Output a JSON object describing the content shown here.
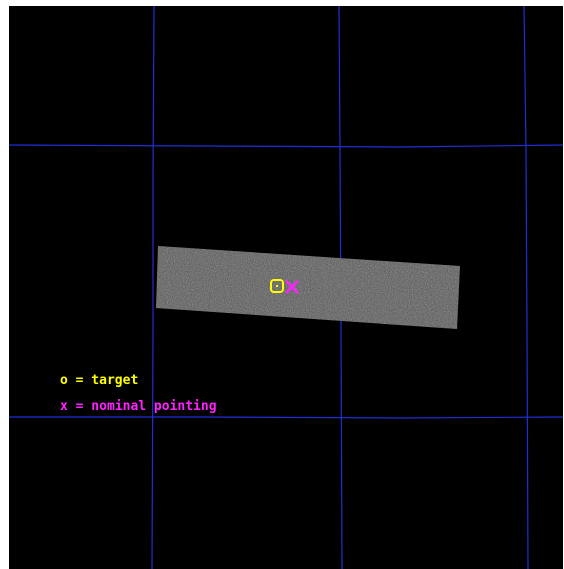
{
  "colors": {
    "background": "#000000",
    "grid": "#1f2fd6",
    "footprint": "#5a5a5a",
    "target": "#ffff00",
    "pointing": "#ff22ff"
  },
  "markers": {
    "target": {
      "symbol": "o",
      "icon": "target-circle-icon"
    },
    "pointing": {
      "symbol": "x",
      "icon": "pointing-cross-icon"
    }
  },
  "legend": {
    "target_label": "o = target",
    "pointing_label": "x = nominal pointing"
  }
}
